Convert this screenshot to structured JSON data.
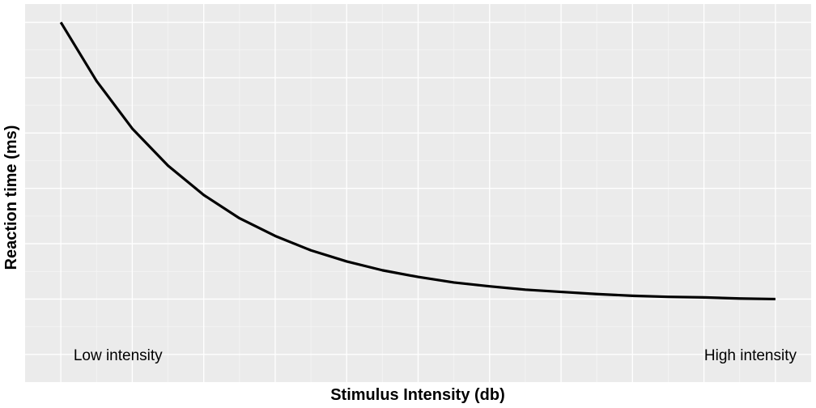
{
  "chart_data": {
    "type": "line",
    "title": "",
    "xlabel": "Stimulus Intensity (db)",
    "ylabel": "Reaction time (ms)",
    "xlim": [
      -0.5,
      10.5
    ],
    "ylim": [
      -1.5,
      5.33
    ],
    "grid": true,
    "legend": "none",
    "series": [
      {
        "x": [
          0,
          0.5,
          1,
          1.5,
          2,
          2.5,
          3,
          3.5,
          4,
          4.5,
          5,
          5.5,
          6,
          6.5,
          7,
          7.5,
          8,
          8.5,
          9,
          9.5,
          10
        ],
        "y": [
          5.0,
          3.94,
          3.08,
          2.41,
          1.88,
          1.46,
          1.14,
          0.88,
          0.68,
          0.52,
          0.4,
          0.3,
          0.23,
          0.17,
          0.13,
          0.09,
          0.06,
          0.04,
          0.03,
          0.01,
          0.0
        ]
      }
    ],
    "annotations": [
      {
        "text": "Low intensity",
        "x": 0.8,
        "y": -1.0
      },
      {
        "text": "High intensity",
        "x": 9.65,
        "y": -1.0
      }
    ],
    "colors": {
      "panel": "#ebebeb",
      "grid_major": "#ffffff",
      "grid_minor": "#f5f5f5",
      "line": "#000000"
    }
  }
}
